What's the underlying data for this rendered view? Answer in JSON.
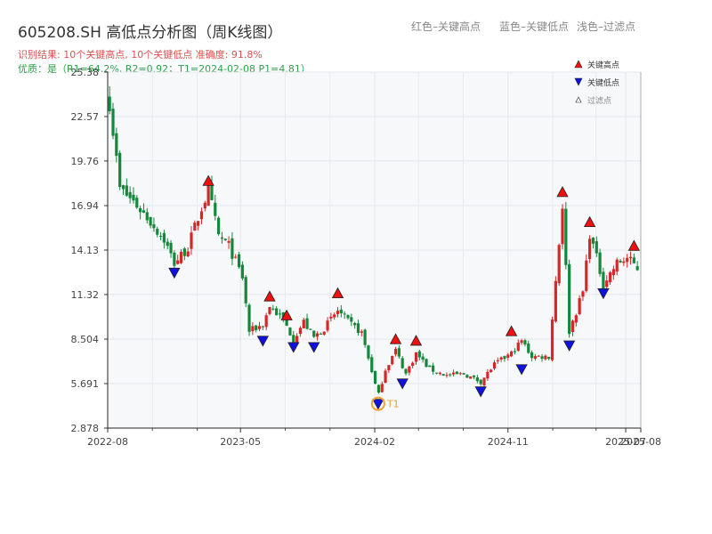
{
  "header": {
    "title": "605208.SH 高低点分析图（周K线图）",
    "result": "识别结果: 10个关键高点, 10个关键低点  准确度: 91.8%",
    "quality": "优质：是（R1=64.2%, R2=0.92；T1=2024-02-08 P1=4.81）"
  },
  "top_legend": {
    "red": "红色–关键高点",
    "blue": "蓝色–关键低点",
    "light": "浅色–过滤点"
  },
  "chart_data": {
    "type": "candlestick",
    "title": "605208.SH 高低点分析图（周K线图）",
    "xlabel": "",
    "ylabel": "",
    "ylim": [
      2.878,
      25.38
    ],
    "yticks": [
      "2.878",
      "5.691",
      "8.504",
      "11.32",
      "14.13",
      "16.94",
      "19.76",
      "22.57",
      "25.38"
    ],
    "xticks": [
      "2022-08",
      "2023-05",
      "2024-02",
      "2024-11",
      "2025-07",
      "2025-08"
    ],
    "grid": true,
    "colors": {
      "up": "#d62728",
      "down": "#13873a",
      "high_marker": "#ee1111",
      "low_marker": "#1111dd",
      "t1": "#f0a030"
    },
    "legend": {
      "placement": "top-right",
      "entries": [
        "关键高点",
        "关键低点",
        "过滤点"
      ]
    },
    "t1_label": "T1",
    "anchors": [
      [
        "2022-08-05",
        23.5
      ],
      [
        "2022-08-26",
        18.0
      ],
      [
        "2022-09-23",
        17.2
      ],
      [
        "2022-10-21",
        16.2
      ],
      [
        "2022-11-25",
        14.8
      ],
      [
        "2022-12-16",
        13.3
      ],
      [
        "2023-01-13",
        14.3
      ],
      [
        "2023-02-10",
        16.8
      ],
      [
        "2023-02-24",
        17.9
      ],
      [
        "2023-03-17",
        15.0
      ],
      [
        "2023-04-07",
        14.4
      ],
      [
        "2023-05-05",
        12.4
      ],
      [
        "2023-05-19",
        9.0
      ],
      [
        "2023-06-16",
        9.4
      ],
      [
        "2023-06-30",
        10.6
      ],
      [
        "2023-07-28",
        9.7
      ],
      [
        "2023-08-18",
        8.5
      ],
      [
        "2023-09-08",
        9.6
      ],
      [
        "2023-09-29",
        8.6
      ],
      [
        "2023-10-20",
        9.2
      ],
      [
        "2023-11-17",
        10.3
      ],
      [
        "2023-12-08",
        9.6
      ],
      [
        "2024-01-05",
        8.9
      ],
      [
        "2024-01-26",
        6.5
      ],
      [
        "2024-02-08",
        4.9
      ],
      [
        "2024-02-23",
        6.6
      ],
      [
        "2024-03-15",
        7.8
      ],
      [
        "2024-04-05",
        6.3
      ],
      [
        "2024-04-26",
        7.6
      ],
      [
        "2024-05-24",
        6.6
      ],
      [
        "2024-06-28",
        6.2
      ],
      [
        "2024-08-02",
        6.3
      ],
      [
        "2024-09-06",
        5.8
      ],
      [
        "2024-10-04",
        6.9
      ],
      [
        "2024-11-08",
        7.6
      ],
      [
        "2024-11-29",
        8.4
      ],
      [
        "2024-12-20",
        7.4
      ],
      [
        "2025-01-24",
        7.4
      ],
      [
        "2025-02-21",
        17.0
      ],
      [
        "2025-03-07",
        9.0
      ],
      [
        "2025-04-04",
        11.5
      ],
      [
        "2025-04-18",
        15.2
      ],
      [
        "2025-05-16",
        12.0
      ],
      [
        "2025-06-13",
        13.3
      ],
      [
        "2025-07-04",
        13.6
      ],
      [
        "2025-07-25",
        13.0
      ]
    ],
    "key_highs": [
      {
        "date": "2023-02-24",
        "value": 18.1
      },
      {
        "date": "2023-06-30",
        "value": 10.8
      },
      {
        "date": "2023-08-04",
        "value": 9.6
      },
      {
        "date": "2023-11-17",
        "value": 11.0
      },
      {
        "date": "2024-03-15",
        "value": 8.1
      },
      {
        "date": "2024-04-26",
        "value": 8.0
      },
      {
        "date": "2024-11-08",
        "value": 8.6
      },
      {
        "date": "2025-02-21",
        "value": 17.4
      },
      {
        "date": "2025-04-18",
        "value": 15.5
      },
      {
        "date": "2025-07-18",
        "value": 14.0
      }
    ],
    "key_lows": [
      {
        "date": "2022-12-16",
        "value": 13.1
      },
      {
        "date": "2023-06-16",
        "value": 8.8
      },
      {
        "date": "2023-08-18",
        "value": 8.4
      },
      {
        "date": "2023-09-29",
        "value": 8.4
      },
      {
        "date": "2024-02-08",
        "value": 4.81
      },
      {
        "date": "2024-03-29",
        "value": 6.1
      },
      {
        "date": "2024-09-06",
        "value": 5.6
      },
      {
        "date": "2024-11-29",
        "value": 7.0
      },
      {
        "date": "2025-03-07",
        "value": 8.5
      },
      {
        "date": "2025-05-16",
        "value": 11.8
      }
    ]
  }
}
